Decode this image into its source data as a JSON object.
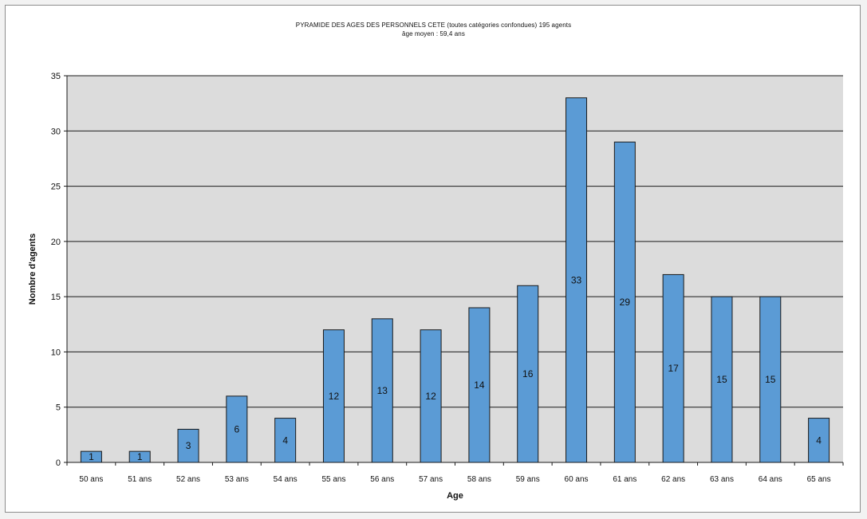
{
  "chart_data": {
    "type": "bar",
    "title": "PYRAMIDE DES AGES DES PERSONNELS CETE (toutes catégories confondues)  195 agents",
    "subtitle": "âge moyen : 59,4 ans",
    "xlabel": "Age",
    "ylabel": "Nombre d'agents",
    "categories": [
      "50 ans",
      "51 ans",
      "52 ans",
      "53 ans",
      "54 ans",
      "55 ans",
      "56 ans",
      "57 ans",
      "58 ans",
      "59 ans",
      "60 ans",
      "61 ans",
      "62 ans",
      "63 ans",
      "64 ans",
      "65 ans"
    ],
    "values": [
      1,
      1,
      3,
      6,
      4,
      12,
      13,
      12,
      14,
      16,
      33,
      29,
      17,
      15,
      15,
      4
    ],
    "ylim": [
      0,
      35
    ],
    "yticks": [
      0,
      5,
      10,
      15,
      20,
      25,
      30,
      35
    ],
    "grid": true,
    "legend": "none",
    "colors": {
      "bar_fill": "#5b9bd5",
      "bar_stroke": "#1a1a1a",
      "plot_background": "#dcdcdc",
      "gridline": "#1a1a1a"
    }
  }
}
